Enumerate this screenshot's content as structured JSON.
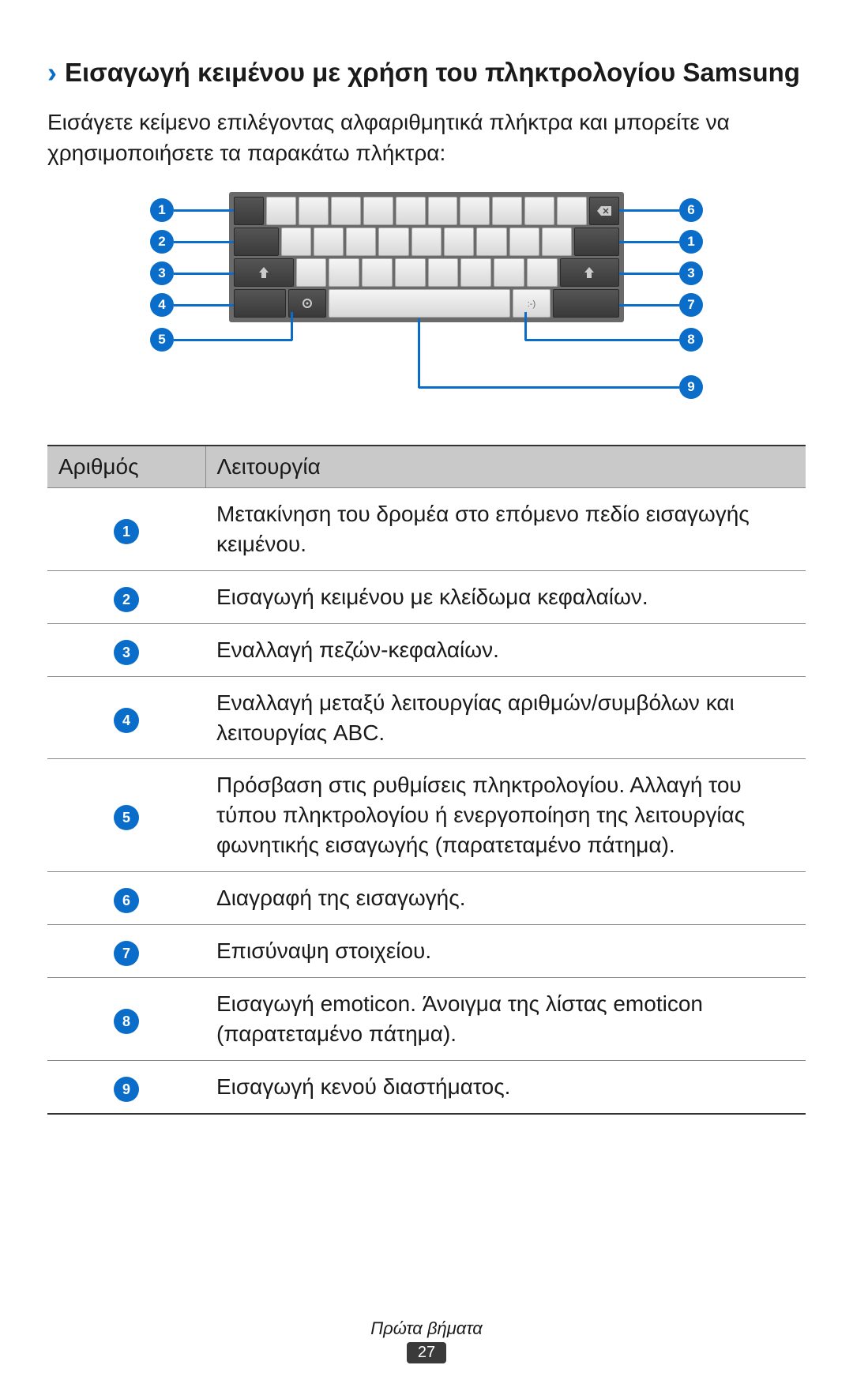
{
  "heading": "Εισαγωγή κειμένου με χρήση του πληκτρολογίου Samsung",
  "intro": "Εισάγετε κείμενο επιλέγοντας αλφαριθμητικά πλήκτρα και μπορείτε να χρησιμοποιήσετε τα παρακάτω πλήκτρα:",
  "callouts": {
    "left": [
      "1",
      "2",
      "3",
      "4",
      "5"
    ],
    "right": [
      "6",
      "1",
      "3",
      "7",
      "8",
      "9"
    ]
  },
  "keyboard": {
    "background": "#6a6a6a",
    "key_light": "#e8e8e8",
    "key_dark": "#444444",
    "rows": [
      {
        "left_dark": 1,
        "light": 10,
        "right_dark": 1,
        "right_icon": "backspace"
      },
      {
        "left_dark": 1.5,
        "light": 9,
        "right_dark": 1.5
      },
      {
        "left_dark": 2,
        "left_icon": "shift",
        "light": 8,
        "right_dark": 2,
        "right_icon": "shift"
      },
      {
        "special": "bottom"
      }
    ]
  },
  "table": {
    "header_number": "Αριθμός",
    "header_function": "Λειτουργία",
    "header_bg": "#c9c9c9",
    "rows": [
      {
        "n": "1",
        "text": "Μετακίνηση του δρομέα στο επόμενο πεδίο εισαγωγής κειμένου."
      },
      {
        "n": "2",
        "text": "Εισαγωγή κειμένου με κλείδωμα κεφαλαίων."
      },
      {
        "n": "3",
        "text": "Εναλλαγή πεζών-κεφαλαίων."
      },
      {
        "n": "4",
        "text": "Εναλλαγή μεταξύ λειτουργίας αριθμών/συμβόλων και λειτουργίας ABC."
      },
      {
        "n": "5",
        "text": "Πρόσβαση στις ρυθμίσεις πληκτρολογίου. Αλλαγή του τύπου πληκτρολογίου ή ενεργοποίηση της λειτουργίας φωνητικής εισαγωγής (παρατεταμένο πάτημα)."
      },
      {
        "n": "6",
        "text": "Διαγραφή της εισαγωγής."
      },
      {
        "n": "7",
        "text": "Επισύναψη στοιχείου."
      },
      {
        "n": "8",
        "text": "Εισαγωγή emoticon. Άνοιγμα της λίστας emoticon (παρατεταμένο πάτημα)."
      },
      {
        "n": "9",
        "text": "Εισαγωγή κενού διαστήματος."
      }
    ]
  },
  "footer": {
    "section": "Πρώτα βήματα",
    "page": "27"
  },
  "colors": {
    "accent": "#0a6dc9",
    "text": "#1a1a1a"
  }
}
